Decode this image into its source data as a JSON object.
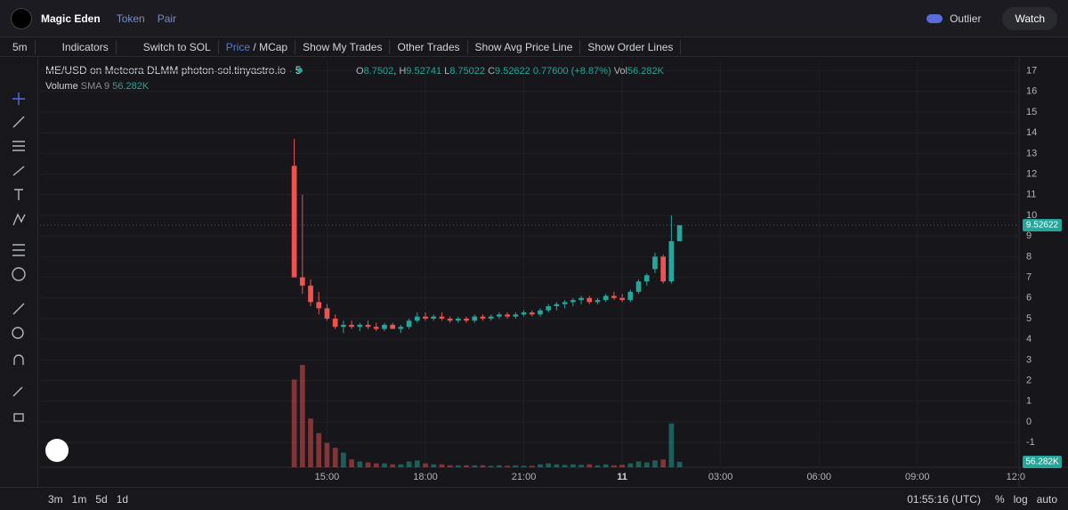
{
  "ui": {
    "app_name": "Magic Eden",
    "token": "Token",
    "pair": "Pair",
    "outlier": "Outlier",
    "watch": "Watch",
    "toolbar": {
      "interval": "5m",
      "indicators": "Indicators",
      "switch": "Switch to SOL",
      "price": "Price",
      "mcap": "/ MCap",
      "my_trades": "Show My Trades",
      "other_trades": "Other Trades",
      "avg_price": "Show Avg Price Line",
      "order_lines": "Show Order Lines"
    },
    "bottom": {
      "ranges": [
        "3m",
        "1m",
        "5d",
        "1d"
      ],
      "clock": "01:55:16 (UTC)",
      "percent": "%",
      "log": "log",
      "auto": "auto"
    }
  },
  "chart_data": {
    "type": "candlestick",
    "title": "ME/USD on Meteora DLMM photon-sol.tinyastro.io · 5",
    "legend": {
      "o": "O",
      "h": "H",
      "l": "L",
      "c": "C",
      "change": "0.77600 (+8.87%)",
      "vol": "Vol",
      "volume": "Volume",
      "sma": "SMA 9"
    },
    "last_volume_label": "56.282K",
    "up_color": "#26a69a",
    "down_color": "#ef5350",
    "x": [
      14,
      14.25,
      14.5,
      14.75,
      15,
      15.25,
      15.5,
      15.75,
      16,
      16.25,
      16.5,
      16.75,
      17,
      17.25,
      17.5,
      17.75,
      18,
      18.25,
      18.5,
      18.75,
      19,
      19.25,
      19.5,
      19.75,
      20,
      20.25,
      20.5,
      20.75,
      21,
      21.25,
      21.5,
      21.75,
      22,
      22.25,
      22.5,
      22.75,
      23,
      23.25,
      23.5,
      23.75,
      24,
      24.25,
      24.5,
      24.75,
      25,
      25.25,
      25.5,
      25.75
    ],
    "open": [
      12.4,
      7.0,
      6.6,
      5.8,
      5.5,
      5.0,
      4.6,
      4.7,
      4.6,
      4.7,
      4.6,
      4.5,
      4.7,
      4.5,
      4.6,
      4.9,
      5.1,
      5.0,
      5.1,
      5.0,
      4.9,
      5.0,
      4.9,
      5.1,
      5.0,
      5.1,
      5.2,
      5.1,
      5.2,
      5.3,
      5.2,
      5.4,
      5.6,
      5.7,
      5.8,
      5.9,
      6.0,
      5.8,
      5.9,
      6.1,
      6.0,
      5.9,
      6.3,
      6.8,
      7.4,
      8.0,
      6.8,
      8.7502
    ],
    "high": [
      13.7,
      11.0,
      6.9,
      6.3,
      5.7,
      5.2,
      4.9,
      4.9,
      4.8,
      4.9,
      4.8,
      4.8,
      4.8,
      4.7,
      5.0,
      5.3,
      5.3,
      5.2,
      5.3,
      5.1,
      5.1,
      5.1,
      5.2,
      5.2,
      5.2,
      5.3,
      5.3,
      5.3,
      5.4,
      5.4,
      5.5,
      5.7,
      5.8,
      5.9,
      6.0,
      6.1,
      6.1,
      6.0,
      6.2,
      6.3,
      6.2,
      6.4,
      6.9,
      7.2,
      8.2,
      8.1,
      10.0,
      9.52741
    ],
    "low": [
      7.0,
      6.2,
      5.6,
      5.2,
      4.9,
      4.5,
      4.3,
      4.5,
      4.4,
      4.5,
      4.4,
      4.4,
      4.5,
      4.3,
      4.5,
      4.8,
      4.9,
      4.9,
      4.9,
      4.8,
      4.8,
      4.8,
      4.8,
      4.9,
      4.9,
      5.0,
      5.0,
      5.0,
      5.1,
      5.1,
      5.1,
      5.3,
      5.4,
      5.5,
      5.6,
      5.7,
      5.7,
      5.7,
      5.8,
      5.9,
      5.8,
      5.8,
      6.2,
      6.6,
      7.2,
      6.7,
      6.7,
      8.75022
    ],
    "close": [
      7.0,
      6.6,
      5.8,
      5.5,
      5.0,
      4.6,
      4.7,
      4.6,
      4.7,
      4.6,
      4.5,
      4.7,
      4.5,
      4.6,
      4.9,
      5.1,
      5.0,
      5.1,
      5.0,
      4.9,
      5.0,
      4.9,
      5.1,
      5.0,
      5.1,
      5.2,
      5.1,
      5.2,
      5.3,
      5.2,
      5.4,
      5.6,
      5.7,
      5.8,
      5.9,
      6.0,
      5.8,
      5.9,
      6.1,
      6.0,
      5.9,
      6.3,
      6.8,
      7.1,
      8.0,
      6.8,
      8.75,
      9.52622
    ],
    "volume": [
      900,
      1050,
      500,
      350,
      250,
      200,
      150,
      80,
      60,
      50,
      40,
      40,
      30,
      30,
      60,
      70,
      40,
      30,
      30,
      20,
      20,
      20,
      20,
      20,
      15,
      20,
      15,
      20,
      15,
      15,
      30,
      40,
      30,
      25,
      30,
      25,
      30,
      20,
      30,
      20,
      25,
      40,
      60,
      50,
      70,
      80,
      450,
      56.282
    ],
    "xlim": [
      6.25,
      36.1
    ],
    "xticks": [
      {
        "value": 15,
        "label": "15:00"
      },
      {
        "value": 18,
        "label": "18:00"
      },
      {
        "value": 21,
        "label": "21:00"
      },
      {
        "value": 24,
        "label": "11"
      },
      {
        "value": 27,
        "label": "03:00"
      },
      {
        "value": 30,
        "label": "06:00"
      },
      {
        "value": 33,
        "label": "09:00"
      },
      {
        "value": 36,
        "label": "12:0"
      }
    ],
    "ylim": [
      -2.2,
      17.5
    ],
    "yticks": [
      -1,
      0,
      1,
      2,
      3,
      4,
      5,
      6,
      7,
      8,
      9,
      10,
      11,
      12,
      13,
      14,
      15,
      16,
      17
    ],
    "grid": true
  }
}
